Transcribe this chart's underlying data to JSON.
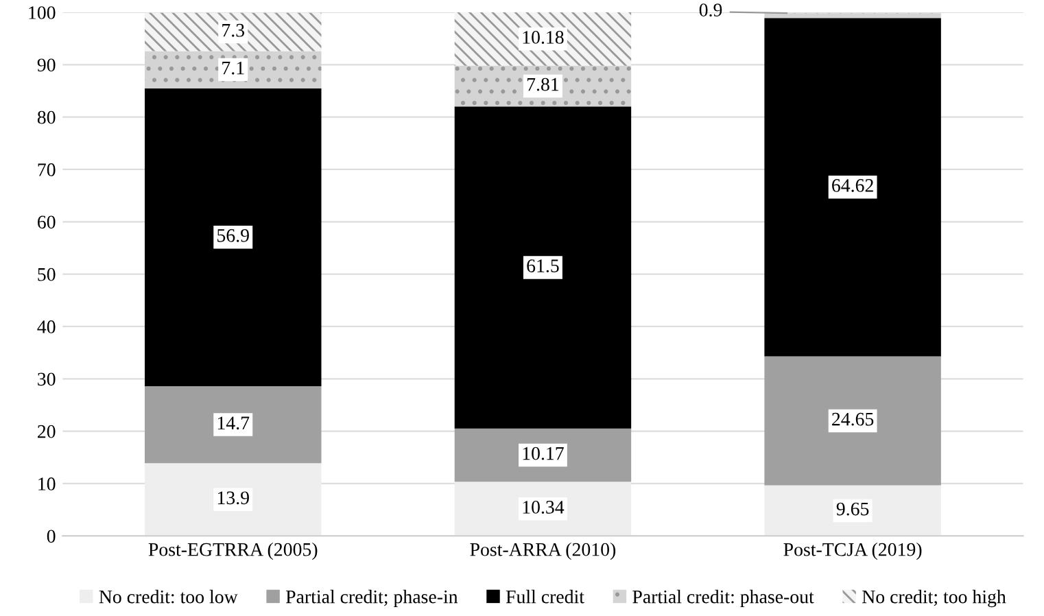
{
  "chart_data": {
    "type": "bar",
    "stacked": true,
    "categories": [
      "Post-EGTRRA (2005)",
      "Post-ARRA (2010)",
      "Post-TCJA (2019)"
    ],
    "series": [
      {
        "name": "No credit: too low",
        "color": "#eeeeee",
        "values": [
          13.9,
          10.34,
          9.65
        ]
      },
      {
        "name": "Partial credit; phase-in",
        "color": "#a0a0a0",
        "values": [
          14.7,
          10.17,
          24.65
        ]
      },
      {
        "name": "Full credit",
        "color": "#000000",
        "values": [
          56.9,
          61.5,
          64.62
        ]
      },
      {
        "name": "Partial credit: phase-out",
        "color": "#d4d4d4",
        "values": [
          7.1,
          7.81,
          0.9
        ]
      },
      {
        "name": "No credit; too high",
        "color": "#f4f4f4",
        "values": [
          7.3,
          10.18,
          null
        ]
      }
    ],
    "data_labels": true,
    "ylim": [
      0,
      100
    ],
    "yticks": [
      0,
      10,
      20,
      30,
      40,
      50,
      60,
      70,
      80,
      90,
      100
    ],
    "grid": "y",
    "legend": "bottom"
  }
}
